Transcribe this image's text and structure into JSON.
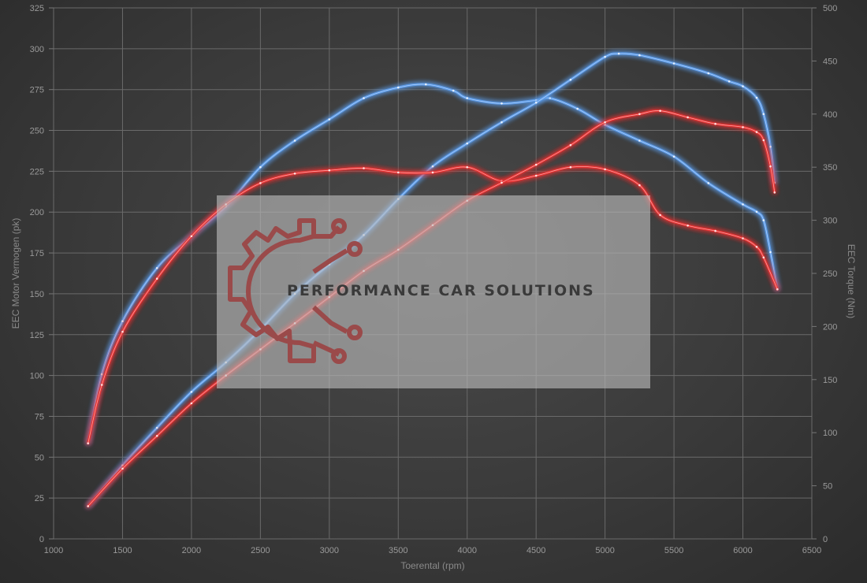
{
  "chart_data": {
    "type": "line",
    "title": "",
    "xlabel": "Toerental (rpm)",
    "ylabel_left": "EEC Motor Vermogen (pk)",
    "ylabel_right": "EEC Torque (Nm)",
    "xlim": [
      1000,
      6500
    ],
    "ylim_left": [
      0,
      325
    ],
    "ylim_right": [
      0,
      500
    ],
    "x_ticks": [
      1000,
      1500,
      2000,
      2500,
      3000,
      3500,
      4000,
      4500,
      5000,
      5500,
      6000,
      6500
    ],
    "y_left_ticks": [
      0,
      25,
      50,
      75,
      100,
      125,
      150,
      175,
      200,
      225,
      250,
      275,
      300,
      325
    ],
    "y_right_ticks": [
      0,
      50,
      100,
      150,
      200,
      250,
      300,
      350,
      400,
      450,
      500
    ],
    "grid": true,
    "legend": "none",
    "series": [
      {
        "axis": "right",
        "color": "#5b9be8",
        "points": [
          [
            1250,
            90
          ],
          [
            1350,
            155
          ],
          [
            1500,
            205
          ],
          [
            1750,
            255
          ],
          [
            2000,
            285
          ],
          [
            2250,
            313
          ],
          [
            2500,
            350
          ],
          [
            2750,
            375
          ],
          [
            3000,
            395
          ],
          [
            3250,
            415
          ],
          [
            3500,
            425
          ],
          [
            3700,
            428
          ],
          [
            3900,
            422
          ],
          [
            4000,
            415
          ],
          [
            4250,
            410
          ],
          [
            4500,
            413
          ],
          [
            4600,
            415
          ],
          [
            4800,
            405
          ],
          [
            5000,
            390
          ],
          [
            5250,
            375
          ],
          [
            5500,
            360
          ],
          [
            5750,
            335
          ],
          [
            6000,
            315
          ],
          [
            6100,
            308
          ],
          [
            6150,
            300
          ],
          [
            6200,
            270
          ],
          [
            6250,
            235
          ]
        ]
      },
      {
        "axis": "left",
        "color": "#5b9be8",
        "points": [
          [
            1250,
            20
          ],
          [
            1500,
            45
          ],
          [
            1750,
            68
          ],
          [
            2000,
            90
          ],
          [
            2250,
            108
          ],
          [
            2500,
            128
          ],
          [
            2750,
            150
          ],
          [
            3000,
            168
          ],
          [
            3250,
            186
          ],
          [
            3500,
            208
          ],
          [
            3750,
            228
          ],
          [
            4000,
            242
          ],
          [
            4250,
            255
          ],
          [
            4500,
            267
          ],
          [
            4750,
            281
          ],
          [
            5000,
            295
          ],
          [
            5100,
            297
          ],
          [
            5250,
            296
          ],
          [
            5500,
            291
          ],
          [
            5750,
            285
          ],
          [
            5900,
            280
          ],
          [
            6000,
            277
          ],
          [
            6100,
            270
          ],
          [
            6150,
            260
          ],
          [
            6200,
            240
          ],
          [
            6230,
            218
          ]
        ]
      },
      {
        "axis": "right",
        "color": "#e63030",
        "points": [
          [
            1250,
            90
          ],
          [
            1350,
            145
          ],
          [
            1500,
            195
          ],
          [
            1750,
            245
          ],
          [
            2000,
            285
          ],
          [
            2250,
            315
          ],
          [
            2500,
            335
          ],
          [
            2750,
            344
          ],
          [
            3000,
            347
          ],
          [
            3250,
            349
          ],
          [
            3500,
            345
          ],
          [
            3750,
            345
          ],
          [
            4000,
            350
          ],
          [
            4250,
            337
          ],
          [
            4500,
            342
          ],
          [
            4750,
            350
          ],
          [
            5000,
            348
          ],
          [
            5250,
            333
          ],
          [
            5400,
            305
          ],
          [
            5600,
            295
          ],
          [
            5800,
            290
          ],
          [
            6000,
            283
          ],
          [
            6100,
            275
          ],
          [
            6150,
            265
          ],
          [
            6250,
            235
          ]
        ]
      },
      {
        "axis": "left",
        "color": "#e63030",
        "points": [
          [
            1250,
            20
          ],
          [
            1500,
            43
          ],
          [
            1750,
            63
          ],
          [
            2000,
            83
          ],
          [
            2250,
            100
          ],
          [
            2500,
            116
          ],
          [
            2750,
            132
          ],
          [
            3000,
            148
          ],
          [
            3250,
            164
          ],
          [
            3500,
            177
          ],
          [
            3750,
            192
          ],
          [
            4000,
            207
          ],
          [
            4250,
            218
          ],
          [
            4500,
            229
          ],
          [
            4750,
            241
          ],
          [
            5000,
            255
          ],
          [
            5250,
            260
          ],
          [
            5400,
            262
          ],
          [
            5600,
            258
          ],
          [
            5800,
            254
          ],
          [
            6000,
            252
          ],
          [
            6100,
            249
          ],
          [
            6150,
            244
          ],
          [
            6200,
            228
          ],
          [
            6230,
            212
          ]
        ]
      }
    ]
  }
}
